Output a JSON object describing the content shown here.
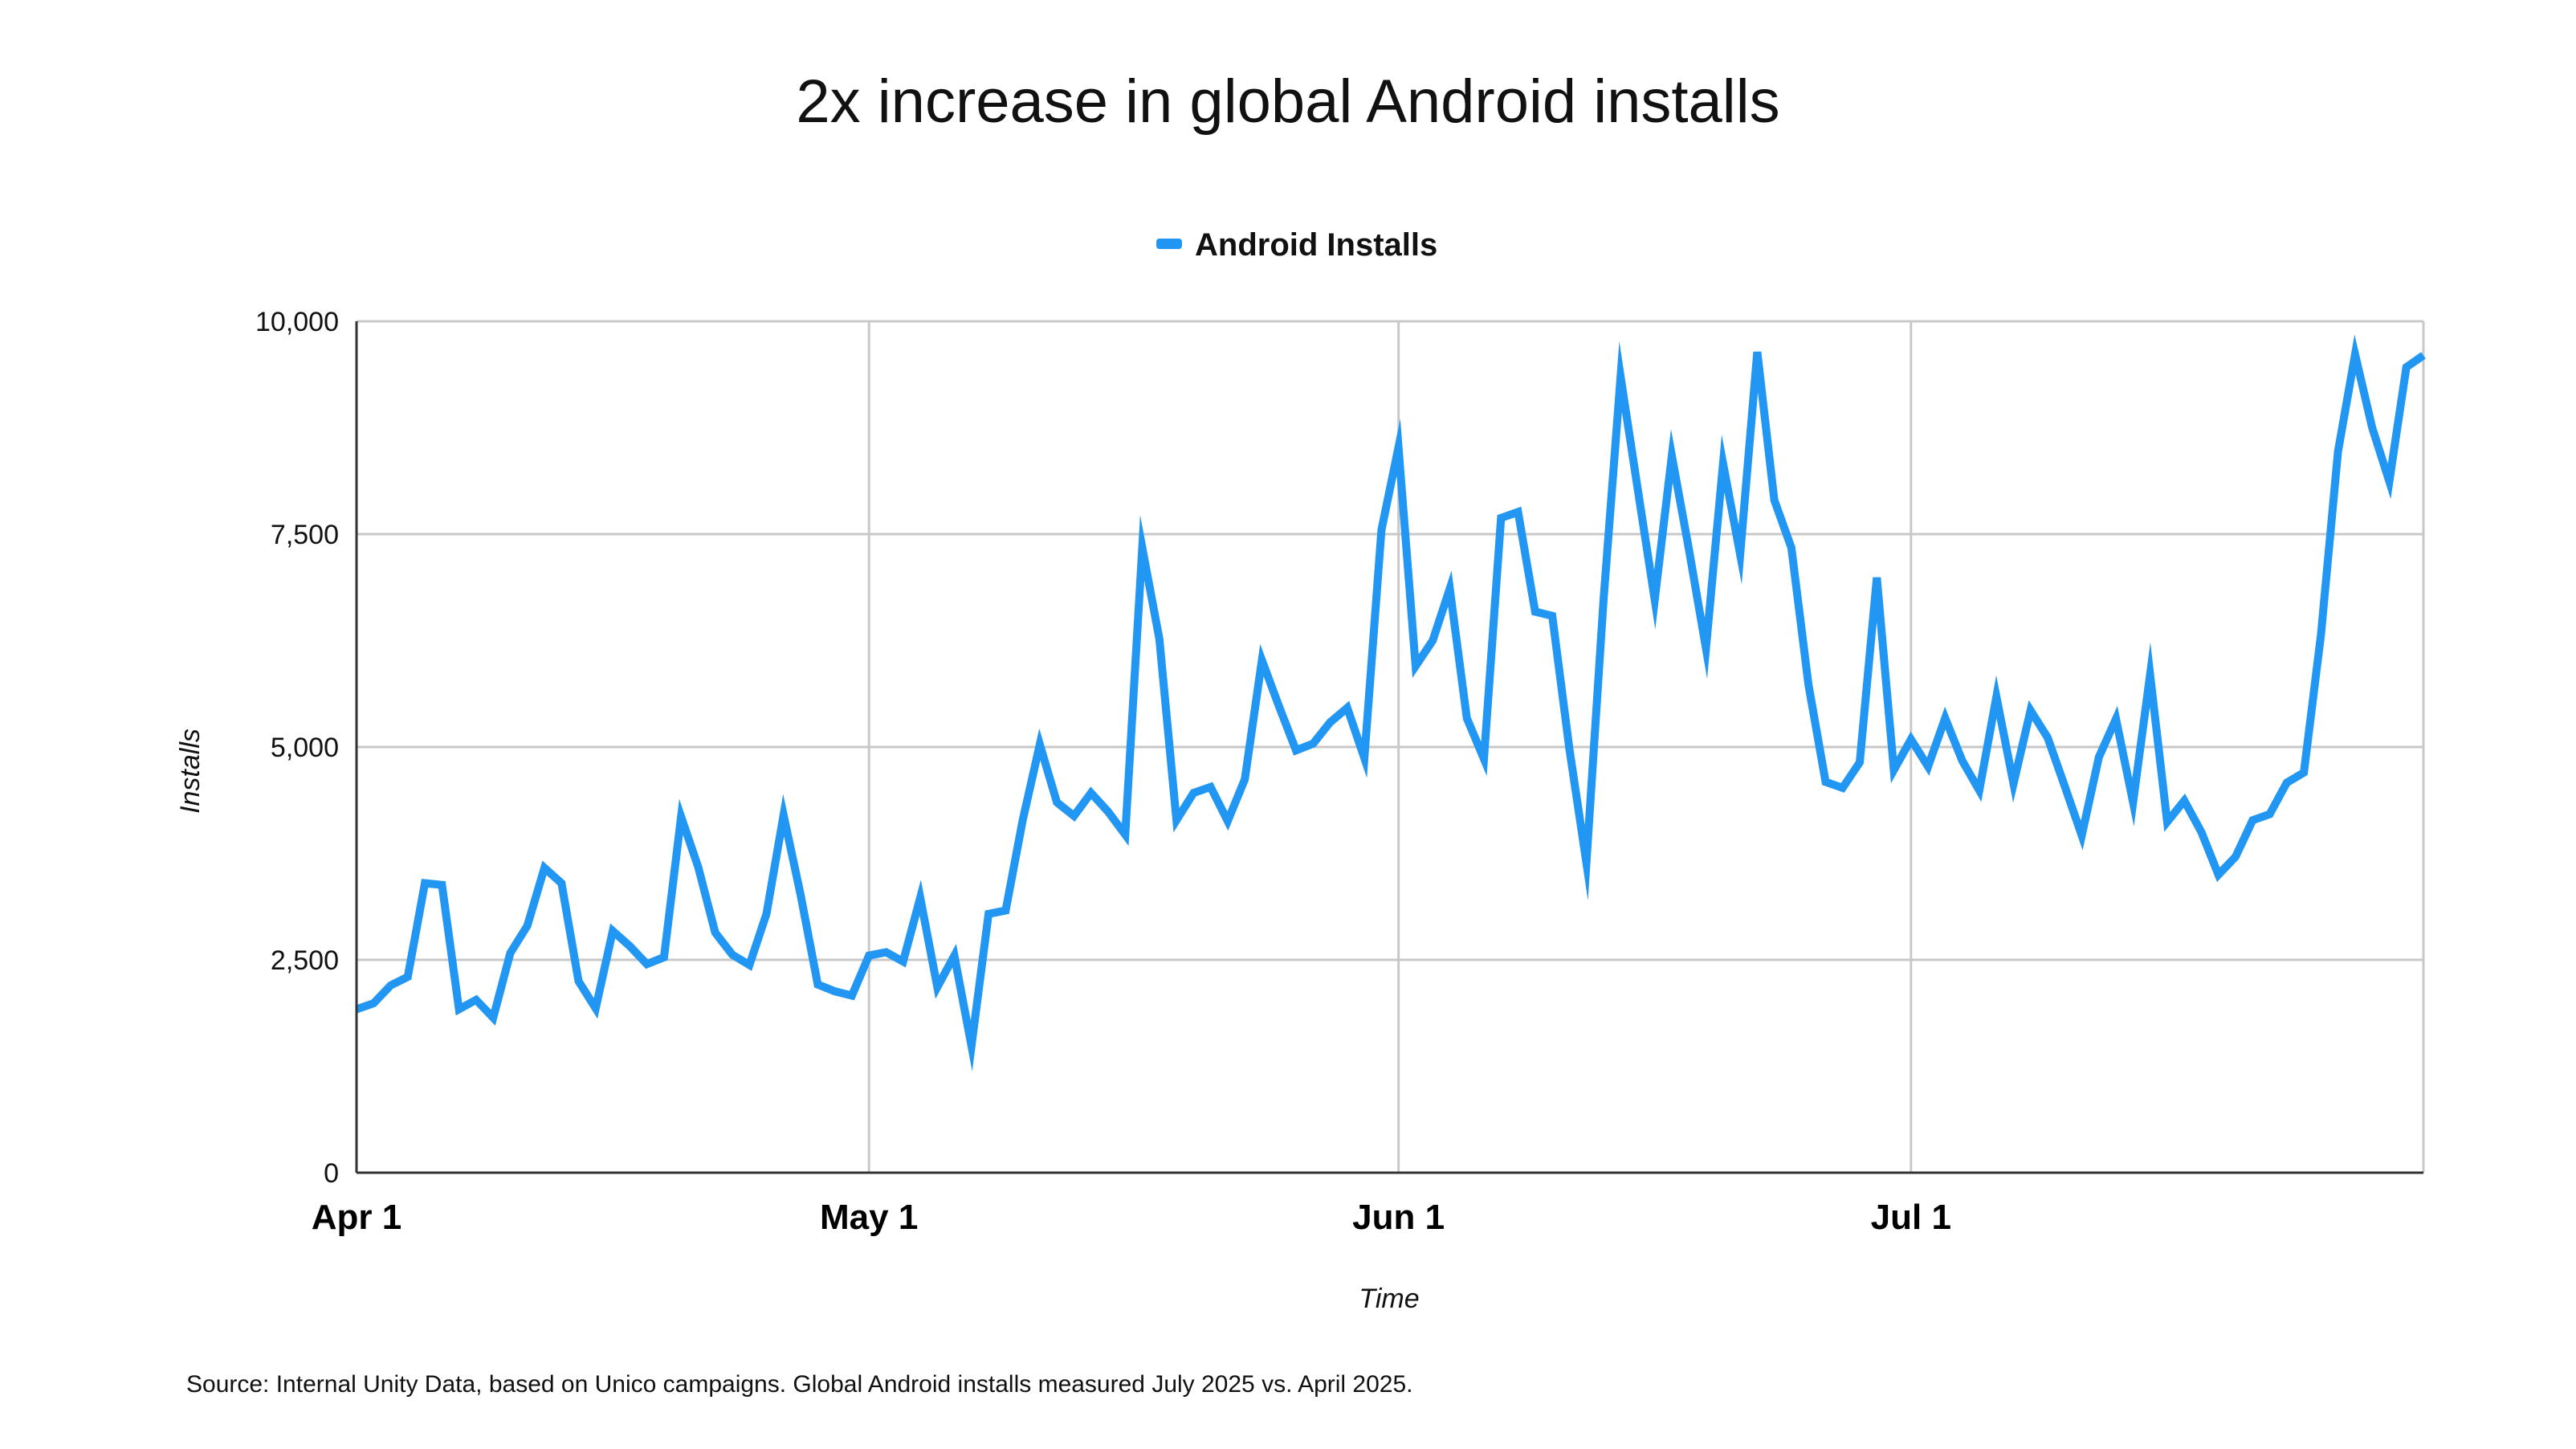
{
  "chart_data": {
    "type": "line",
    "title": "2x increase in global Android installs",
    "xlabel": "Time",
    "ylabel": "Installs",
    "footnote": "Source: Internal Unity Data, based on Unico campaigns. Global Android installs measured July 2025 vs. April 2025.",
    "ylim": [
      0,
      10000
    ],
    "y_ticks": [
      0,
      2500,
      5000,
      7500,
      10000
    ],
    "y_tick_labels": [
      "0",
      "2,500",
      "5,000",
      "7,500",
      "10,000"
    ],
    "x_range": [
      "2025-04-01",
      "2025-07-31"
    ],
    "x_ticks": [
      "2025-04-01",
      "2025-05-01",
      "2025-06-01",
      "2025-07-01"
    ],
    "x_tick_labels": [
      "Apr 1",
      "May 1",
      "Jun 1",
      "Jul 1"
    ],
    "grid": true,
    "legend_position": "top-center",
    "colors": {
      "series": "#2196F3",
      "grid": "#c8c8c8",
      "axis": "#333333",
      "text": "#111111"
    },
    "x": [
      "2025-04-01",
      "2025-04-02",
      "2025-04-03",
      "2025-04-04",
      "2025-04-05",
      "2025-04-06",
      "2025-04-07",
      "2025-04-08",
      "2025-04-09",
      "2025-04-10",
      "2025-04-11",
      "2025-04-12",
      "2025-04-13",
      "2025-04-14",
      "2025-04-15",
      "2025-04-16",
      "2025-04-17",
      "2025-04-18",
      "2025-04-19",
      "2025-04-20",
      "2025-04-21",
      "2025-04-22",
      "2025-04-23",
      "2025-04-24",
      "2025-04-25",
      "2025-04-26",
      "2025-04-27",
      "2025-04-28",
      "2025-04-29",
      "2025-04-30",
      "2025-05-01",
      "2025-05-02",
      "2025-05-03",
      "2025-05-04",
      "2025-05-05",
      "2025-05-06",
      "2025-05-07",
      "2025-05-08",
      "2025-05-09",
      "2025-05-10",
      "2025-05-11",
      "2025-05-12",
      "2025-05-13",
      "2025-05-14",
      "2025-05-15",
      "2025-05-16",
      "2025-05-17",
      "2025-05-18",
      "2025-05-19",
      "2025-05-20",
      "2025-05-21",
      "2025-05-22",
      "2025-05-23",
      "2025-05-24",
      "2025-05-25",
      "2025-05-26",
      "2025-05-27",
      "2025-05-28",
      "2025-05-29",
      "2025-05-30",
      "2025-05-31",
      "2025-06-01",
      "2025-06-02",
      "2025-06-03",
      "2025-06-04",
      "2025-06-05",
      "2025-06-06",
      "2025-06-07",
      "2025-06-08",
      "2025-06-09",
      "2025-06-10",
      "2025-06-11",
      "2025-06-12",
      "2025-06-13",
      "2025-06-14",
      "2025-06-15",
      "2025-06-16",
      "2025-06-17",
      "2025-06-18",
      "2025-06-19",
      "2025-06-20",
      "2025-06-21",
      "2025-06-22",
      "2025-06-23",
      "2025-06-24",
      "2025-06-25",
      "2025-06-26",
      "2025-06-27",
      "2025-06-28",
      "2025-06-29",
      "2025-06-30",
      "2025-07-01",
      "2025-07-02",
      "2025-07-03",
      "2025-07-04",
      "2025-07-05",
      "2025-07-06",
      "2025-07-07",
      "2025-07-08",
      "2025-07-09",
      "2025-07-10",
      "2025-07-11",
      "2025-07-12",
      "2025-07-13",
      "2025-07-14",
      "2025-07-15",
      "2025-07-16",
      "2025-07-17",
      "2025-07-18",
      "2025-07-19",
      "2025-07-20",
      "2025-07-21",
      "2025-07-22",
      "2025-07-23",
      "2025-07-24",
      "2025-07-25",
      "2025-07-26",
      "2025-07-27",
      "2025-07-28",
      "2025-07-29",
      "2025-07-30",
      "2025-07-31"
    ],
    "series": [
      {
        "name": "Android Installs",
        "values": [
          1920,
          1990,
          2200,
          2300,
          3400,
          3380,
          1920,
          2030,
          1820,
          2580,
          2900,
          3580,
          3400,
          2250,
          1930,
          2840,
          2660,
          2450,
          2530,
          4180,
          3590,
          2820,
          2560,
          2440,
          3040,
          4200,
          3260,
          2210,
          2130,
          2080,
          2550,
          2590,
          2480,
          3230,
          2180,
          2550,
          1490,
          3040,
          3080,
          4140,
          5030,
          4350,
          4190,
          4460,
          4240,
          3970,
          7340,
          6270,
          4140,
          4460,
          4530,
          4130,
          4620,
          6020,
          5480,
          4960,
          5040,
          5290,
          5460,
          4870,
          7550,
          8520,
          5950,
          6250,
          6860,
          5340,
          4860,
          7690,
          7760,
          6590,
          6540,
          4980,
          3640,
          6720,
          9350,
          8030,
          6730,
          8420,
          7320,
          6160,
          8330,
          7260,
          9640,
          7900,
          7340,
          5730,
          4590,
          4520,
          4820,
          6990,
          4730,
          5090,
          4770,
          5340,
          4840,
          4490,
          5590,
          4570,
          5430,
          5110,
          4540,
          3960,
          4880,
          5330,
          4350,
          5850,
          4120,
          4370,
          4000,
          3500,
          3710,
          4140,
          4210,
          4580,
          4700,
          6320,
          8470,
          9610,
          8750,
          8120,
          9460,
          9600
        ]
      }
    ]
  }
}
